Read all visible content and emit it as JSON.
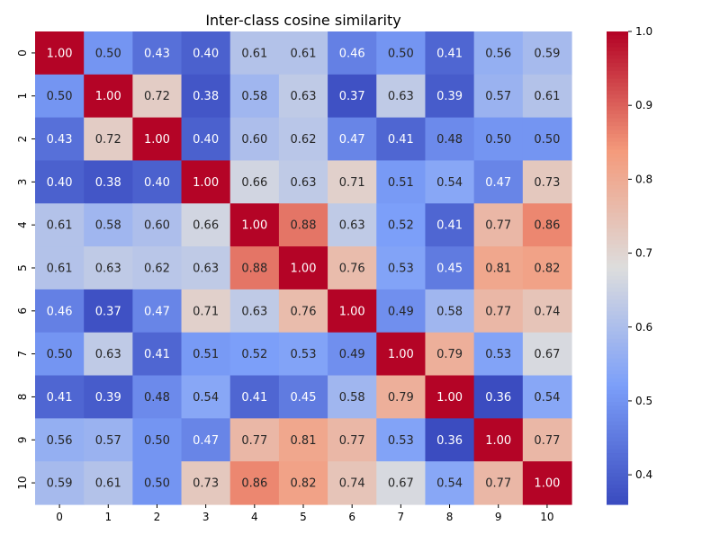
{
  "chart_data": {
    "type": "heatmap",
    "title": "Inter-class cosine similarity",
    "x_labels": [
      "0",
      "1",
      "2",
      "3",
      "4",
      "5",
      "6",
      "7",
      "8",
      "9",
      "10"
    ],
    "y_labels": [
      "0",
      "1",
      "2",
      "3",
      "4",
      "5",
      "6",
      "7",
      "8",
      "9",
      "10"
    ],
    "values": [
      [
        1.0,
        0.5,
        0.43,
        0.4,
        0.61,
        0.61,
        0.46,
        0.5,
        0.41,
        0.56,
        0.59
      ],
      [
        0.5,
        1.0,
        0.72,
        0.38,
        0.58,
        0.63,
        0.37,
        0.63,
        0.39,
        0.57,
        0.61
      ],
      [
        0.43,
        0.72,
        1.0,
        0.4,
        0.6,
        0.62,
        0.47,
        0.41,
        0.48,
        0.5,
        0.5
      ],
      [
        0.4,
        0.38,
        0.4,
        1.0,
        0.66,
        0.63,
        0.71,
        0.51,
        0.54,
        0.47,
        0.73
      ],
      [
        0.61,
        0.58,
        0.6,
        0.66,
        1.0,
        0.88,
        0.63,
        0.52,
        0.41,
        0.77,
        0.86
      ],
      [
        0.61,
        0.63,
        0.62,
        0.63,
        0.88,
        1.0,
        0.76,
        0.53,
        0.45,
        0.81,
        0.82
      ],
      [
        0.46,
        0.37,
        0.47,
        0.71,
        0.63,
        0.76,
        1.0,
        0.49,
        0.58,
        0.77,
        0.74
      ],
      [
        0.5,
        0.63,
        0.41,
        0.51,
        0.52,
        0.53,
        0.49,
        1.0,
        0.79,
        0.53,
        0.67
      ],
      [
        0.41,
        0.39,
        0.48,
        0.54,
        0.41,
        0.45,
        0.58,
        0.79,
        1.0,
        0.36,
        0.54
      ],
      [
        0.56,
        0.57,
        0.5,
        0.47,
        0.77,
        0.81,
        0.77,
        0.53,
        0.36,
        1.0,
        0.77
      ],
      [
        0.59,
        0.61,
        0.5,
        0.73,
        0.86,
        0.82,
        0.74,
        0.67,
        0.54,
        0.77,
        1.0
      ]
    ],
    "value_format": "2 decimals",
    "colormap": "coolwarm",
    "colorbar": {
      "range": [
        0.36,
        1.0
      ],
      "ticks": [
        0.4,
        0.5,
        0.6,
        0.7,
        0.8,
        0.9,
        1.0
      ],
      "tick_labels": [
        "0.4",
        "0.5",
        "0.6",
        "0.7",
        "0.8",
        "0.9",
        "1.0"
      ],
      "position": "right"
    },
    "grid": false
  }
}
